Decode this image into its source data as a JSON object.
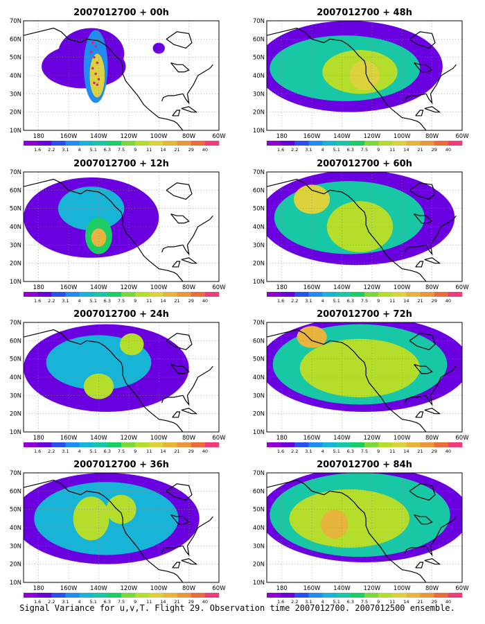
{
  "figure": {
    "caption": "Signal Variance for u,v,T. Flight 29. Observation time 2007012700. 2007012500 ensemble."
  },
  "common": {
    "lat_labels": [
      "70N",
      "60N",
      "50N",
      "40N",
      "30N",
      "20N",
      "10N"
    ],
    "lon_labels": [
      "180",
      "160W",
      "140W",
      "120W",
      "100W",
      "80W",
      "60W"
    ],
    "colorbar": {
      "labels": [
        "1.6",
        "2.2",
        "3.1",
        "4",
        "5.1",
        "6.3",
        "7.5",
        "9",
        "11",
        "14",
        "21",
        "29",
        "40"
      ],
      "colors": [
        "#8f00d2",
        "#6a00e0",
        "#2b4ef0",
        "#1e8cf0",
        "#17b4d8",
        "#17c7a5",
        "#19cf61",
        "#7bd83a",
        "#b4dd2c",
        "#dcd23d",
        "#e7b43d",
        "#e9963d",
        "#ec6a3c",
        "#f23c7a"
      ]
    }
  },
  "panels": [
    {
      "title": "2007012700 + 00h",
      "blobs": [
        {
          "lon": -145,
          "lat": 52,
          "rx": 22,
          "ry": 14,
          "level": 1
        },
        {
          "lon": -150,
          "lat": 45,
          "rx": 28,
          "ry": 12,
          "level": 1
        },
        {
          "lon": -100,
          "lat": 55,
          "rx": 4,
          "ry": 3,
          "level": 1
        },
        {
          "lon": -142,
          "lat": 45,
          "rx": 8,
          "ry": 20,
          "level": 3
        },
        {
          "lon": -141,
          "lat": 40,
          "rx": 5,
          "ry": 12,
          "level": 9
        }
      ],
      "obs_markers": [
        [
          -144,
          58
        ],
        [
          -142,
          56
        ],
        [
          -145,
          53
        ],
        [
          -143,
          50
        ],
        [
          -141,
          47
        ],
        [
          -144,
          44
        ],
        [
          -142,
          41
        ],
        [
          -140,
          38
        ],
        [
          -143,
          36
        ],
        [
          -141,
          35
        ]
      ]
    },
    {
      "title": "2007012700 + 48h",
      "blobs": [
        {
          "lon": -135,
          "lat": 45,
          "rx": 62,
          "ry": 25,
          "level": 1
        },
        {
          "lon": -138,
          "lat": 44,
          "rx": 50,
          "ry": 18,
          "level": 5
        },
        {
          "lon": -128,
          "lat": 42,
          "rx": 25,
          "ry": 12,
          "level": 8
        },
        {
          "lon": -125,
          "lat": 40,
          "rx": 10,
          "ry": 8,
          "level": 9
        }
      ],
      "obs_markers": []
    },
    {
      "title": "2007012700 + 12h",
      "blobs": [
        {
          "lon": -145,
          "lat": 45,
          "rx": 45,
          "ry": 22,
          "level": 1
        },
        {
          "lon": -145,
          "lat": 50,
          "rx": 22,
          "ry": 12,
          "level": 4
        },
        {
          "lon": -140,
          "lat": 35,
          "rx": 9,
          "ry": 10,
          "level": 6
        },
        {
          "lon": -140,
          "lat": 34,
          "rx": 5,
          "ry": 5,
          "level": 10
        }
      ],
      "obs_markers": []
    },
    {
      "title": "2007012700 + 60h",
      "blobs": [
        {
          "lon": -130,
          "lat": 45,
          "rx": 65,
          "ry": 26,
          "level": 1
        },
        {
          "lon": -135,
          "lat": 45,
          "rx": 50,
          "ry": 20,
          "level": 5
        },
        {
          "lon": -128,
          "lat": 40,
          "rx": 22,
          "ry": 14,
          "level": 8
        },
        {
          "lon": -160,
          "lat": 55,
          "rx": 12,
          "ry": 8,
          "level": 9
        }
      ],
      "obs_markers": []
    },
    {
      "title": "2007012700 + 24h",
      "blobs": [
        {
          "lon": -135,
          "lat": 45,
          "rx": 55,
          "ry": 24,
          "level": 1
        },
        {
          "lon": -140,
          "lat": 48,
          "rx": 35,
          "ry": 15,
          "level": 4
        },
        {
          "lon": -140,
          "lat": 35,
          "rx": 10,
          "ry": 7,
          "level": 8
        },
        {
          "lon": -118,
          "lat": 58,
          "rx": 8,
          "ry": 6,
          "level": 8
        }
      ],
      "obs_markers": []
    },
    {
      "title": "2007012700 + 72h",
      "blobs": [
        {
          "lon": -125,
          "lat": 47,
          "rx": 70,
          "ry": 26,
          "level": 1
        },
        {
          "lon": -128,
          "lat": 47,
          "rx": 58,
          "ry": 22,
          "level": 5
        },
        {
          "lon": -128,
          "lat": 45,
          "rx": 40,
          "ry": 16,
          "level": 8
        },
        {
          "lon": -160,
          "lat": 62,
          "rx": 10,
          "ry": 6,
          "level": 10
        }
      ],
      "obs_markers": []
    },
    {
      "title": "2007012700 + 36h",
      "blobs": [
        {
          "lon": -135,
          "lat": 45,
          "rx": 62,
          "ry": 25,
          "level": 1
        },
        {
          "lon": -135,
          "lat": 45,
          "rx": 48,
          "ry": 20,
          "level": 4
        },
        {
          "lon": -145,
          "lat": 45,
          "rx": 12,
          "ry": 12,
          "level": 8
        },
        {
          "lon": -125,
          "lat": 50,
          "rx": 10,
          "ry": 8,
          "level": 8
        }
      ],
      "obs_markers": []
    },
    {
      "title": "2007012700 + 84h",
      "blobs": [
        {
          "lon": -125,
          "lat": 47,
          "rx": 70,
          "ry": 26,
          "level": 1
        },
        {
          "lon": -128,
          "lat": 47,
          "rx": 60,
          "ry": 23,
          "level": 5
        },
        {
          "lon": -135,
          "lat": 45,
          "rx": 40,
          "ry": 16,
          "level": 8
        },
        {
          "lon": -145,
          "lat": 42,
          "rx": 9,
          "ry": 8,
          "level": 10
        }
      ],
      "obs_markers": []
    }
  ]
}
